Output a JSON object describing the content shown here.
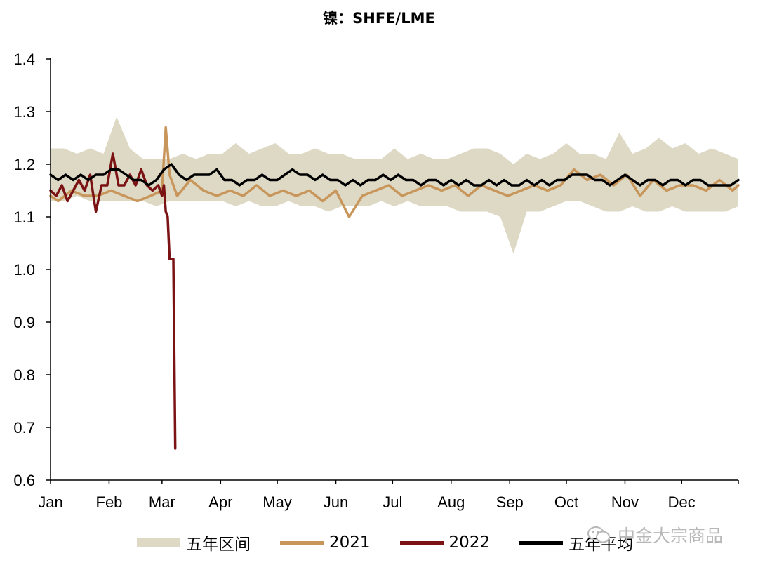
{
  "chart_data": {
    "type": "line",
    "title": "镍：SHFE/LME",
    "xlabel": "",
    "ylabel": "",
    "ylim": [
      0.6,
      1.4
    ],
    "yticks": [
      "0.6",
      "0.7",
      "0.8",
      "0.9",
      "1.0",
      "1.1",
      "1.2",
      "1.3",
      "1.4"
    ],
    "month_labels": [
      "Jan",
      "Feb",
      "Mar",
      "Apr",
      "May",
      "Jun",
      "Jul",
      "Aug",
      "Sep",
      "Oct",
      "Nov",
      "Dec"
    ],
    "x_domain": [
      "Jan 1",
      "Dec 31"
    ],
    "legend_position": "bottom",
    "grid": false,
    "series": [
      {
        "name": "五年区间",
        "kind": "band",
        "color": "#ddd9c4",
        "x": [
          "Jan 1",
          "Jan 8",
          "Jan 15",
          "Jan 22",
          "Jan 29",
          "Feb 5",
          "Feb 12",
          "Feb 19",
          "Feb 26",
          "Mar 5",
          "Mar 12",
          "Mar 19",
          "Mar 26",
          "Apr 2",
          "Apr 9",
          "Apr 16",
          "Apr 23",
          "Apr 30",
          "May 7",
          "May 14",
          "May 21",
          "May 28",
          "Jun 4",
          "Jun 11",
          "Jun 18",
          "Jun 25",
          "Jul 2",
          "Jul 9",
          "Jul 16",
          "Jul 23",
          "Jul 30",
          "Aug 6",
          "Aug 13",
          "Aug 20",
          "Aug 27",
          "Sep 3",
          "Sep 10",
          "Sep 17",
          "Sep 24",
          "Oct 1",
          "Oct 8",
          "Oct 15",
          "Oct 22",
          "Oct 29",
          "Nov 5",
          "Nov 12",
          "Nov 19",
          "Nov 26",
          "Dec 3",
          "Dec 10",
          "Dec 17",
          "Dec 24",
          "Dec 31"
        ],
        "upper": [
          1.23,
          1.23,
          1.22,
          1.23,
          1.22,
          1.29,
          1.23,
          1.21,
          1.21,
          1.21,
          1.22,
          1.21,
          1.22,
          1.22,
          1.24,
          1.22,
          1.23,
          1.24,
          1.22,
          1.22,
          1.23,
          1.22,
          1.22,
          1.21,
          1.21,
          1.21,
          1.23,
          1.21,
          1.22,
          1.21,
          1.21,
          1.22,
          1.23,
          1.23,
          1.22,
          1.2,
          1.22,
          1.21,
          1.22,
          1.24,
          1.22,
          1.22,
          1.21,
          1.26,
          1.22,
          1.23,
          1.25,
          1.23,
          1.24,
          1.22,
          1.23,
          1.22,
          1.21
        ],
        "lower": [
          1.13,
          1.13,
          1.14,
          1.13,
          1.13,
          1.13,
          1.13,
          1.13,
          1.12,
          1.13,
          1.13,
          1.13,
          1.13,
          1.13,
          1.12,
          1.13,
          1.12,
          1.12,
          1.13,
          1.12,
          1.12,
          1.11,
          1.12,
          1.12,
          1.12,
          1.13,
          1.12,
          1.13,
          1.12,
          1.12,
          1.12,
          1.11,
          1.11,
          1.11,
          1.1,
          1.03,
          1.11,
          1.11,
          1.12,
          1.13,
          1.13,
          1.12,
          1.11,
          1.11,
          1.12,
          1.11,
          1.11,
          1.12,
          1.11,
          1.11,
          1.11,
          1.11,
          1.12
        ]
      },
      {
        "name": "2021",
        "kind": "line",
        "color": "#c8955b",
        "x": [
          "Jan 1",
          "Jan 5",
          "Jan 12",
          "Jan 19",
          "Jan 26",
          "Feb 2",
          "Feb 9",
          "Feb 16",
          "Feb 23",
          "Mar 1",
          "Mar 3",
          "Mar 5",
          "Mar 9",
          "Mar 16",
          "Mar 23",
          "Mar 30",
          "Apr 6",
          "Apr 13",
          "Apr 20",
          "Apr 27",
          "May 4",
          "May 11",
          "May 18",
          "May 25",
          "Jun 1",
          "Jun 8",
          "Jun 15",
          "Jun 22",
          "Jun 29",
          "Jul 6",
          "Jul 13",
          "Jul 20",
          "Jul 27",
          "Aug 3",
          "Aug 10",
          "Aug 17",
          "Aug 24",
          "Aug 31",
          "Sep 7",
          "Sep 14",
          "Sep 21",
          "Sep 28",
          "Oct 5",
          "Oct 12",
          "Oct 19",
          "Oct 26",
          "Nov 2",
          "Nov 9",
          "Nov 16",
          "Nov 23",
          "Nov 30",
          "Dec 7",
          "Dec 14",
          "Dec 21",
          "Dec 28",
          "Dec 31"
        ],
        "y": [
          1.14,
          1.13,
          1.15,
          1.14,
          1.14,
          1.15,
          1.14,
          1.13,
          1.14,
          1.15,
          1.27,
          1.18,
          1.14,
          1.17,
          1.15,
          1.14,
          1.15,
          1.14,
          1.16,
          1.14,
          1.15,
          1.14,
          1.15,
          1.13,
          1.15,
          1.1,
          1.14,
          1.15,
          1.16,
          1.14,
          1.15,
          1.16,
          1.15,
          1.16,
          1.14,
          1.16,
          1.15,
          1.14,
          1.15,
          1.16,
          1.15,
          1.16,
          1.19,
          1.17,
          1.18,
          1.16,
          1.18,
          1.14,
          1.17,
          1.15,
          1.16,
          1.16,
          1.15,
          1.17,
          1.15,
          1.16
        ]
      },
      {
        "name": "2022",
        "kind": "line",
        "color": "#7b1315",
        "x": [
          "Jan 1",
          "Jan 4",
          "Jan 7",
          "Jan 10",
          "Jan 13",
          "Jan 16",
          "Jan 19",
          "Jan 22",
          "Jan 25",
          "Jan 28",
          "Jan 31",
          "Feb 3",
          "Feb 6",
          "Feb 9",
          "Feb 12",
          "Feb 15",
          "Feb 18",
          "Feb 21",
          "Feb 24",
          "Feb 27",
          "Mar 1",
          "Mar 2",
          "Mar 3",
          "Mar 4",
          "Mar 5",
          "Mar 6",
          "Mar 7",
          "Mar 8"
        ],
        "y": [
          1.15,
          1.14,
          1.16,
          1.13,
          1.15,
          1.17,
          1.15,
          1.18,
          1.11,
          1.16,
          1.16,
          1.22,
          1.16,
          1.16,
          1.18,
          1.16,
          1.19,
          1.16,
          1.15,
          1.16,
          1.14,
          1.16,
          1.11,
          1.1,
          1.02,
          1.02,
          1.02,
          0.66
        ]
      },
      {
        "name": "五年平均",
        "kind": "line",
        "color": "#000000",
        "x": [
          "Jan 1",
          "Jan 5",
          "Jan 9",
          "Jan 13",
          "Jan 17",
          "Jan 21",
          "Jan 25",
          "Jan 29",
          "Feb 2",
          "Feb 6",
          "Feb 10",
          "Feb 14",
          "Feb 18",
          "Feb 22",
          "Feb 26",
          "Mar 2",
          "Mar 6",
          "Mar 10",
          "Mar 14",
          "Mar 18",
          "Mar 22",
          "Mar 26",
          "Mar 30",
          "Apr 3",
          "Apr 7",
          "Apr 11",
          "Apr 15",
          "Apr 19",
          "Apr 23",
          "Apr 27",
          "May 1",
          "May 5",
          "May 9",
          "May 13",
          "May 17",
          "May 21",
          "May 25",
          "May 29",
          "Jun 2",
          "Jun 6",
          "Jun 10",
          "Jun 14",
          "Jun 18",
          "Jun 22",
          "Jun 26",
          "Jun 30",
          "Jul 4",
          "Jul 8",
          "Jul 12",
          "Jul 16",
          "Jul 20",
          "Jul 24",
          "Jul 28",
          "Aug 1",
          "Aug 5",
          "Aug 9",
          "Aug 13",
          "Aug 17",
          "Aug 21",
          "Aug 25",
          "Aug 29",
          "Sep 2",
          "Sep 6",
          "Sep 10",
          "Sep 14",
          "Sep 18",
          "Sep 22",
          "Sep 26",
          "Sep 30",
          "Oct 4",
          "Oct 8",
          "Oct 12",
          "Oct 16",
          "Oct 20",
          "Oct 24",
          "Oct 28",
          "Nov 1",
          "Nov 5",
          "Nov 9",
          "Nov 13",
          "Nov 17",
          "Nov 21",
          "Nov 25",
          "Nov 29",
          "Dec 3",
          "Dec 7",
          "Dec 11",
          "Dec 15",
          "Dec 19",
          "Dec 23",
          "Dec 27",
          "Dec 31"
        ],
        "y": [
          1.18,
          1.17,
          1.18,
          1.17,
          1.18,
          1.17,
          1.18,
          1.18,
          1.19,
          1.19,
          1.18,
          1.17,
          1.17,
          1.16,
          1.17,
          1.19,
          1.2,
          1.18,
          1.17,
          1.18,
          1.18,
          1.18,
          1.19,
          1.17,
          1.17,
          1.16,
          1.17,
          1.17,
          1.18,
          1.17,
          1.17,
          1.18,
          1.19,
          1.18,
          1.18,
          1.17,
          1.18,
          1.17,
          1.17,
          1.16,
          1.17,
          1.16,
          1.17,
          1.17,
          1.18,
          1.17,
          1.18,
          1.17,
          1.17,
          1.16,
          1.17,
          1.17,
          1.16,
          1.17,
          1.16,
          1.17,
          1.16,
          1.16,
          1.17,
          1.16,
          1.17,
          1.16,
          1.16,
          1.17,
          1.16,
          1.17,
          1.16,
          1.17,
          1.17,
          1.18,
          1.18,
          1.18,
          1.17,
          1.17,
          1.16,
          1.17,
          1.18,
          1.17,
          1.16,
          1.17,
          1.17,
          1.16,
          1.17,
          1.17,
          1.16,
          1.17,
          1.17,
          1.16,
          1.16,
          1.16,
          1.16,
          1.17
        ]
      }
    ]
  },
  "watermark": {
    "text": "中金大宗商品",
    "icon": "wechat-icon"
  }
}
